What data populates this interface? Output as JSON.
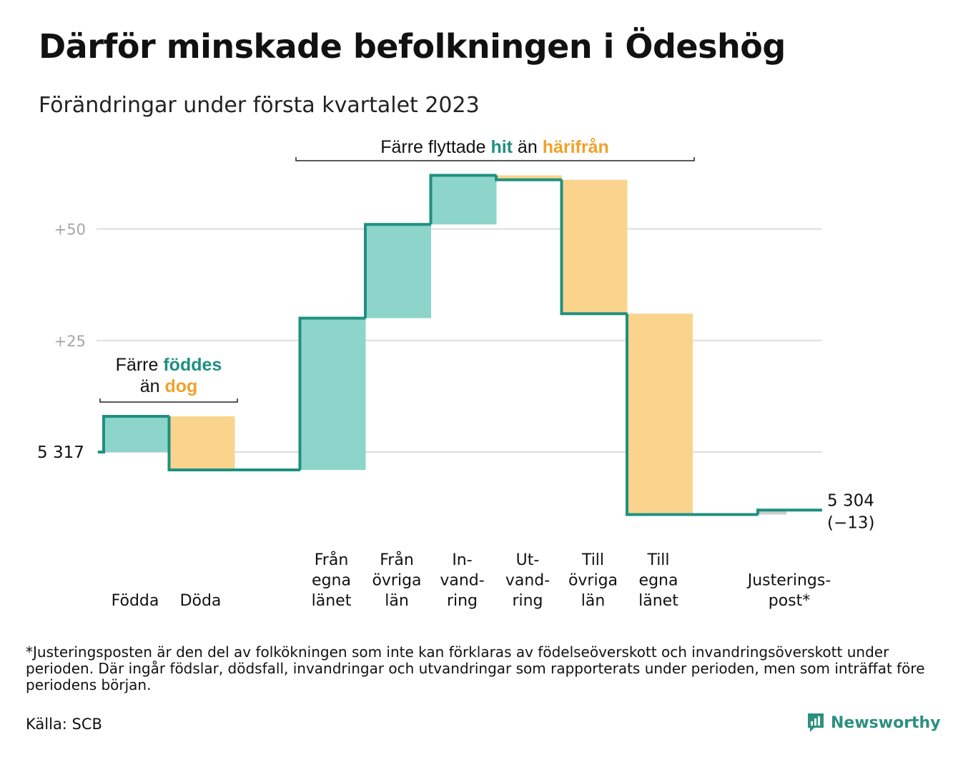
{
  "title": "Därför minskade befolkningen i Ödeshög",
  "subtitle": "Förändringar under första kvartalet 2023",
  "colors": {
    "increase": "#8dd5cb",
    "decrease": "#fad48d",
    "line": "#1f9080",
    "adjust": "#cccccc",
    "hit": "#1f9080",
    "harifran": "#f0a22d"
  },
  "chart_data": {
    "type": "bar",
    "subtype": "waterfall",
    "start_value": 5317,
    "start_label": "5 317",
    "end_label": "5 304",
    "end_change_label": "(−13)",
    "y_tick_labels": [
      "+25",
      "+50"
    ],
    "y_ticks": [
      25,
      50
    ],
    "grid": true,
    "categories": [
      {
        "lines": [
          "Födda"
        ],
        "value": 8,
        "kind": "increase"
      },
      {
        "lines": [
          "Döda"
        ],
        "value": -12,
        "kind": "decrease"
      },
      {
        "lines": [],
        "value": 0,
        "kind": "gap"
      },
      {
        "lines": [
          "Från",
          "egna",
          "länet"
        ],
        "value": 34,
        "kind": "increase"
      },
      {
        "lines": [
          "Från",
          "övriga",
          "län"
        ],
        "value": 21,
        "kind": "increase"
      },
      {
        "lines": [
          "In-",
          "vand-",
          "ring"
        ],
        "value": 11,
        "kind": "increase"
      },
      {
        "lines": [
          "Ut-",
          "vand-",
          "ring"
        ],
        "value": -1,
        "kind": "decrease"
      },
      {
        "lines": [
          "Till",
          "övriga",
          "län"
        ],
        "value": -30,
        "kind": "decrease"
      },
      {
        "lines": [
          "Till",
          "egna",
          "länet"
        ],
        "value": -45,
        "kind": "decrease"
      },
      {
        "lines": [],
        "value": 0,
        "kind": "gap"
      },
      {
        "lines": [
          "Justerings-",
          "post*"
        ],
        "value": 1,
        "kind": "adjust"
      }
    ],
    "annotations": {
      "births": {
        "line1_prefix": "Färre ",
        "line1_highlight": "föddes",
        "line2_prefix": "än ",
        "line2_highlight": "dog"
      },
      "migration": {
        "prefix": "Färre flyttade ",
        "hit": "hit",
        "middle": " än ",
        "harifran": "härifrån"
      }
    }
  },
  "footnote": "*Justeringsposten är den del av folkökningen som inte kan förklaras av födelseöverskott och invandringsöverskott under perioden. Där ingår födslar, dödsfall, invandringar och utvandringar som rapporterats under perioden, men som inträffat före periodens början.",
  "source": "Källa: SCB",
  "brand": "Newsworthy"
}
